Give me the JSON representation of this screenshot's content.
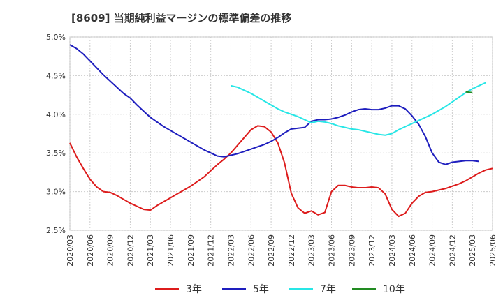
{
  "chart_data": {
    "type": "line",
    "title": "[8609]  当期純利益マージンの標準偏差の推移",
    "xlabel": "",
    "ylabel": "",
    "ylim": [
      2.5,
      5.0
    ],
    "y_ticks": [
      "5.0%",
      "4.5%",
      "4.0%",
      "3.5%",
      "3.0%",
      "2.5%"
    ],
    "x_ticks": [
      "2020/03",
      "2020/06",
      "2020/09",
      "2020/12",
      "2021/03",
      "2021/06",
      "2021/09",
      "2021/12",
      "2022/03",
      "2022/06",
      "2022/09",
      "2022/12",
      "2023/03",
      "2023/06",
      "2023/09",
      "2023/12",
      "2024/03",
      "2024/06",
      "2024/09",
      "2024/12",
      "2025/03",
      "2025/06"
    ],
    "grid": true,
    "legend_position": "bottom",
    "x_start": "2020/03",
    "series": [
      {
        "name": "3年",
        "color": "#dd1c1c",
        "start": "2020/03",
        "values": [
          3.63,
          3.45,
          3.3,
          3.16,
          3.06,
          3.0,
          2.99,
          2.95,
          2.9,
          2.85,
          2.81,
          2.77,
          2.76,
          2.82,
          2.87,
          2.92,
          2.97,
          3.02,
          3.07,
          3.13,
          3.19,
          3.27,
          3.35,
          3.42,
          3.5,
          3.6,
          3.7,
          3.8,
          3.85,
          3.84,
          3.77,
          3.63,
          3.37,
          2.98,
          2.79,
          2.72,
          2.75,
          2.7,
          2.73,
          3.0,
          3.08,
          3.08,
          3.06,
          3.05,
          3.05,
          3.06,
          3.05,
          2.97,
          2.77,
          2.68,
          2.72,
          2.85,
          2.94,
          2.99,
          3.0,
          3.02,
          3.04,
          3.07,
          3.1,
          3.14,
          3.19,
          3.24,
          3.28,
          3.3
        ]
      },
      {
        "name": "5年",
        "color": "#1e1ebe",
        "start": "2020/03",
        "values": [
          4.9,
          4.85,
          4.78,
          4.69,
          4.6,
          4.51,
          4.43,
          4.35,
          4.27,
          4.21,
          4.12,
          4.04,
          3.96,
          3.9,
          3.84,
          3.79,
          3.74,
          3.69,
          3.64,
          3.59,
          3.54,
          3.5,
          3.46,
          3.45,
          3.47,
          3.49,
          3.52,
          3.55,
          3.58,
          3.61,
          3.65,
          3.7,
          3.76,
          3.81,
          3.82,
          3.83,
          3.91,
          3.93,
          3.93,
          3.94,
          3.96,
          3.99,
          4.03,
          4.06,
          4.07,
          4.06,
          4.06,
          4.08,
          4.11,
          4.11,
          4.07,
          3.98,
          3.87,
          3.71,
          3.5,
          3.38,
          3.35,
          3.38,
          3.39,
          3.4,
          3.4,
          3.39
        ]
      },
      {
        "name": "7年",
        "color": "#28e6e6",
        "start": "2022/03",
        "values": [
          4.37,
          4.35,
          4.31,
          4.27,
          4.22,
          4.17,
          4.12,
          4.07,
          4.03,
          4.0,
          3.97,
          3.93,
          3.89,
          3.91,
          3.9,
          3.88,
          3.85,
          3.83,
          3.81,
          3.8,
          3.78,
          3.76,
          3.74,
          3.73,
          3.75,
          3.8,
          3.84,
          3.88,
          3.92,
          3.96,
          4.0,
          4.05,
          4.1,
          4.16,
          4.22,
          4.28,
          4.33,
          4.37,
          4.41
        ]
      },
      {
        "name": "10年",
        "color": "#228b22",
        "start": "2025/02",
        "values": [
          4.29,
          4.28
        ]
      }
    ]
  }
}
